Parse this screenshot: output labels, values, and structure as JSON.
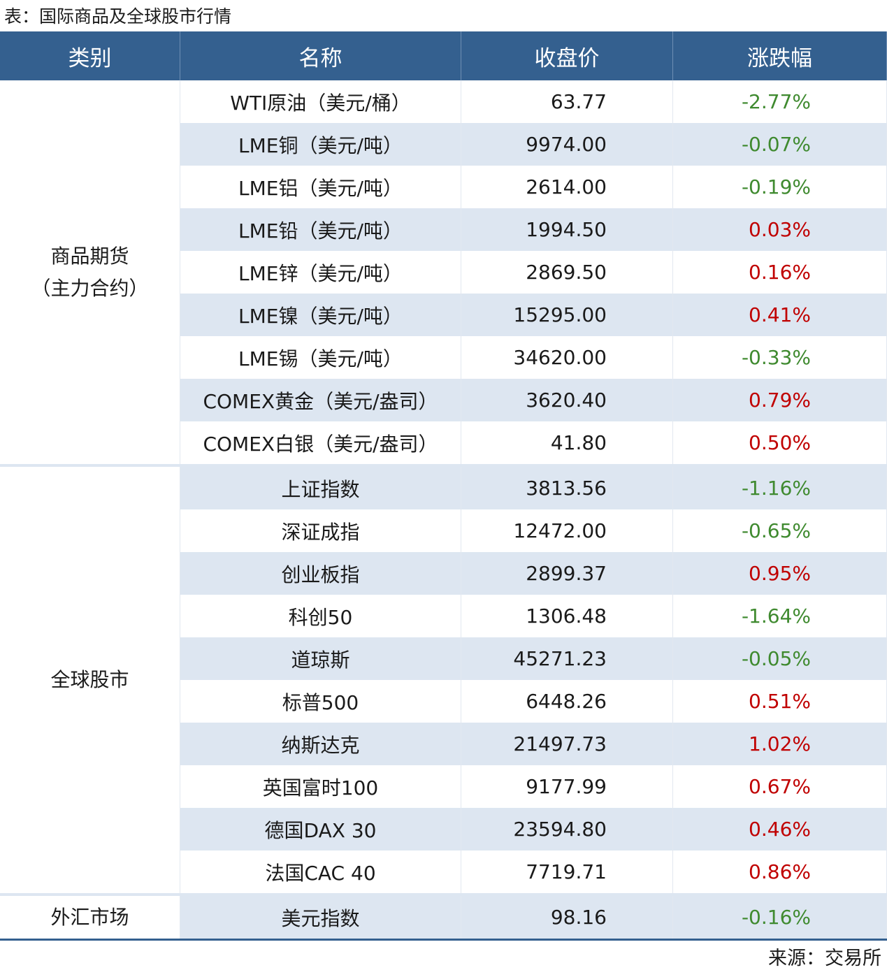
{
  "header": {
    "title": "表：国际商品及全球股市行情"
  },
  "table": {
    "columns": [
      "类别",
      "名称",
      "收盘价",
      "涨跌幅"
    ],
    "groups": [
      {
        "category": [
          "商品期货",
          "（主力合约）"
        ],
        "rows": [
          [
            "WTI原油（美元/桶）",
            "63.77",
            "-2.77%"
          ],
          [
            "LME铜（美元/吨）",
            "9974.00",
            "-0.07%"
          ],
          [
            "LME铝（美元/吨）",
            "2614.00",
            "-0.19%"
          ],
          [
            "LME铅（美元/吨）",
            "1994.50",
            "0.03%"
          ],
          [
            "LME锌（美元/吨）",
            "2869.50",
            "0.16%"
          ],
          [
            "LME镍（美元/吨）",
            "15295.00",
            "0.41%"
          ],
          [
            "LME锡（美元/吨）",
            "34620.00",
            "-0.33%"
          ],
          [
            "COMEX黄金（美元/盎司）",
            "3620.40",
            "0.79%"
          ],
          [
            "COMEX白银（美元/盎司）",
            "41.80",
            "0.50%"
          ]
        ]
      },
      {
        "category": [
          "全球股市"
        ],
        "rows": [
          [
            "上证指数",
            "3813.56",
            "-1.16%"
          ],
          [
            "深证成指",
            "12472.00",
            "-0.65%"
          ],
          [
            "创业板指",
            "2899.37",
            "0.95%"
          ],
          [
            "科创50",
            "1306.48",
            "-1.64%"
          ],
          [
            "道琼斯",
            "45271.23",
            "-0.05%"
          ],
          [
            "标普500",
            "6448.26",
            "0.51%"
          ],
          [
            "纳斯达克",
            "21497.73",
            "1.02%"
          ],
          [
            "英国富时100",
            "9177.99",
            "0.67%"
          ],
          [
            "德国DAX 30",
            "23594.80",
            "0.46%"
          ],
          [
            "法国CAC 40",
            "7719.71",
            "0.86%"
          ]
        ]
      },
      {
        "category": [
          "外汇市场"
        ],
        "rows": [
          [
            "美元指数",
            "98.16",
            "-0.16%"
          ]
        ]
      }
    ]
  },
  "footer": {
    "source": "来源：交易所"
  }
}
